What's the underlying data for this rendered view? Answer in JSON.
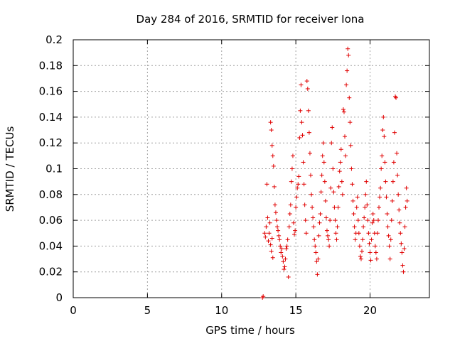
{
  "chart_data": {
    "type": "scatter",
    "title": "Day 284 of 2016, SRMTID for receiver Iona",
    "xlabel": "GPS time / hours",
    "ylabel": "SRMTID / TECUs",
    "xlim": [
      0,
      24
    ],
    "ylim": [
      0,
      0.2
    ],
    "xticks": [
      0,
      5,
      10,
      15,
      20
    ],
    "yticks": [
      0,
      0.02,
      0.04,
      0.06,
      0.08,
      0.1,
      0.12,
      0.14,
      0.16,
      0.18,
      0.2
    ],
    "xtick_labels": [
      "0",
      "5",
      "10",
      "15",
      "20"
    ],
    "ytick_labels": [
      "0",
      "0.02",
      "0.04",
      "0.06",
      "0.08",
      "0.1",
      "0.12",
      "0.14",
      "0.16",
      "0.18",
      "0.2"
    ],
    "grid": true,
    "marker": "+",
    "color": "#e00000",
    "series": [
      {
        "name": "SRMTID",
        "points": [
          [
            12.75,
            0.0
          ],
          [
            12.8,
            0.001
          ],
          [
            12.9,
            0.05
          ],
          [
            12.95,
            0.047
          ],
          [
            13.0,
            0.055
          ],
          [
            13.05,
            0.088
          ],
          [
            13.1,
            0.062
          ],
          [
            13.15,
            0.044
          ],
          [
            13.2,
            0.05
          ],
          [
            13.25,
            0.058
          ],
          [
            13.3,
            0.041
          ],
          [
            13.35,
            0.036
          ],
          [
            13.4,
            0.046
          ],
          [
            13.45,
            0.031
          ],
          [
            13.3,
            0.136
          ],
          [
            13.35,
            0.13
          ],
          [
            13.4,
            0.118
          ],
          [
            13.45,
            0.11
          ],
          [
            13.5,
            0.102
          ],
          [
            13.55,
            0.086
          ],
          [
            13.6,
            0.072
          ],
          [
            13.65,
            0.066
          ],
          [
            13.7,
            0.06
          ],
          [
            13.75,
            0.055
          ],
          [
            13.8,
            0.052
          ],
          [
            13.85,
            0.048
          ],
          [
            13.9,
            0.045
          ],
          [
            13.95,
            0.04
          ],
          [
            14.0,
            0.035
          ],
          [
            14.05,
            0.038
          ],
          [
            14.1,
            0.032
          ],
          [
            14.15,
            0.028
          ],
          [
            14.2,
            0.022
          ],
          [
            14.25,
            0.024
          ],
          [
            14.3,
            0.03
          ],
          [
            14.35,
            0.038
          ],
          [
            14.4,
            0.04
          ],
          [
            14.45,
            0.045
          ],
          [
            14.5,
            0.016
          ],
          [
            14.55,
            0.055
          ],
          [
            14.6,
            0.065
          ],
          [
            14.65,
            0.072
          ],
          [
            14.7,
            0.09
          ],
          [
            14.75,
            0.1
          ],
          [
            14.8,
            0.11
          ],
          [
            14.85,
            0.058
          ],
          [
            14.9,
            0.049
          ],
          [
            14.95,
            0.052
          ],
          [
            15.0,
            0.07
          ],
          [
            15.05,
            0.078
          ],
          [
            15.1,
            0.085
          ],
          [
            15.15,
            0.088
          ],
          [
            15.2,
            0.094
          ],
          [
            15.25,
            0.124
          ],
          [
            15.3,
            0.145
          ],
          [
            15.35,
            0.165
          ],
          [
            15.4,
            0.136
          ],
          [
            15.45,
            0.126
          ],
          [
            15.5,
            0.105
          ],
          [
            15.55,
            0.088
          ],
          [
            15.6,
            0.072
          ],
          [
            15.65,
            0.06
          ],
          [
            15.7,
            0.05
          ],
          [
            15.75,
            0.168
          ],
          [
            15.8,
            0.162
          ],
          [
            15.85,
            0.145
          ],
          [
            15.9,
            0.128
          ],
          [
            15.95,
            0.112
          ],
          [
            16.0,
            0.095
          ],
          [
            16.05,
            0.08
          ],
          [
            16.1,
            0.07
          ],
          [
            16.15,
            0.062
          ],
          [
            16.2,
            0.055
          ],
          [
            16.25,
            0.045
          ],
          [
            16.3,
            0.04
          ],
          [
            16.35,
            0.035
          ],
          [
            16.4,
            0.028
          ],
          [
            16.45,
            0.018
          ],
          [
            16.5,
            0.03
          ],
          [
            16.55,
            0.048
          ],
          [
            16.6,
            0.058
          ],
          [
            16.65,
            0.065
          ],
          [
            16.7,
            0.082
          ],
          [
            16.75,
            0.095
          ],
          [
            16.8,
            0.11
          ],
          [
            16.85,
            0.12
          ],
          [
            16.9,
            0.105
          ],
          [
            16.95,
            0.09
          ],
          [
            17.0,
            0.075
          ],
          [
            17.05,
            0.062
          ],
          [
            17.1,
            0.052
          ],
          [
            17.15,
            0.048
          ],
          [
            17.2,
            0.045
          ],
          [
            17.25,
            0.04
          ],
          [
            17.3,
            0.06
          ],
          [
            17.35,
            0.085
          ],
          [
            17.4,
            0.12
          ],
          [
            17.45,
            0.132
          ],
          [
            17.5,
            0.1
          ],
          [
            17.55,
            0.082
          ],
          [
            17.6,
            0.07
          ],
          [
            17.65,
            0.06
          ],
          [
            17.7,
            0.05
          ],
          [
            17.75,
            0.045
          ],
          [
            17.8,
            0.055
          ],
          [
            17.85,
            0.07
          ],
          [
            17.9,
            0.086
          ],
          [
            17.95,
            0.098
          ],
          [
            18.0,
            0.105
          ],
          [
            18.05,
            0.115
          ],
          [
            18.1,
            0.09
          ],
          [
            18.15,
            0.08
          ],
          [
            18.2,
            0.146
          ],
          [
            18.25,
            0.144
          ],
          [
            18.3,
            0.125
          ],
          [
            18.35,
            0.11
          ],
          [
            18.4,
            0.165
          ],
          [
            18.45,
            0.176
          ],
          [
            18.5,
            0.193
          ],
          [
            18.55,
            0.188
          ],
          [
            18.6,
            0.155
          ],
          [
            18.65,
            0.136
          ],
          [
            18.7,
            0.118
          ],
          [
            18.75,
            0.1
          ],
          [
            18.8,
            0.088
          ],
          [
            18.85,
            0.075
          ],
          [
            18.9,
            0.065
          ],
          [
            18.95,
            0.055
          ],
          [
            19.0,
            0.045
          ],
          [
            19.05,
            0.05
          ],
          [
            19.1,
            0.07
          ],
          [
            19.15,
            0.078
          ],
          [
            19.2,
            0.06
          ],
          [
            19.25,
            0.05
          ],
          [
            19.3,
            0.04
          ],
          [
            19.35,
            0.032
          ],
          [
            19.4,
            0.03
          ],
          [
            19.45,
            0.036
          ],
          [
            19.5,
            0.045
          ],
          [
            19.55,
            0.055
          ],
          [
            19.6,
            0.062
          ],
          [
            19.65,
            0.07
          ],
          [
            19.7,
            0.08
          ],
          [
            19.75,
            0.09
          ],
          [
            19.8,
            0.072
          ],
          [
            19.85,
            0.06
          ],
          [
            19.9,
            0.05
          ],
          [
            19.95,
            0.042
          ],
          [
            20.0,
            0.035
          ],
          [
            20.05,
            0.029
          ],
          [
            20.1,
            0.045
          ],
          [
            20.15,
            0.058
          ],
          [
            20.2,
            0.065
          ],
          [
            20.25,
            0.06
          ],
          [
            20.3,
            0.05
          ],
          [
            20.35,
            0.04
          ],
          [
            20.4,
            0.035
          ],
          [
            20.45,
            0.03
          ],
          [
            20.5,
            0.05
          ],
          [
            20.55,
            0.06
          ],
          [
            20.6,
            0.07
          ],
          [
            20.65,
            0.078
          ],
          [
            20.7,
            0.085
          ],
          [
            20.75,
            0.1
          ],
          [
            20.8,
            0.11
          ],
          [
            20.85,
            0.13
          ],
          [
            20.9,
            0.14
          ],
          [
            20.95,
            0.125
          ],
          [
            21.0,
            0.105
          ],
          [
            21.05,
            0.09
          ],
          [
            21.1,
            0.078
          ],
          [
            21.15,
            0.065
          ],
          [
            21.2,
            0.055
          ],
          [
            21.25,
            0.048
          ],
          [
            21.3,
            0.04
          ],
          [
            21.35,
            0.03
          ],
          [
            21.4,
            0.045
          ],
          [
            21.45,
            0.06
          ],
          [
            21.5,
            0.075
          ],
          [
            21.55,
            0.09
          ],
          [
            21.6,
            0.105
          ],
          [
            21.65,
            0.128
          ],
          [
            21.7,
            0.156
          ],
          [
            21.75,
            0.155
          ],
          [
            21.8,
            0.112
          ],
          [
            21.85,
            0.095
          ],
          [
            21.9,
            0.08
          ],
          [
            21.95,
            0.068
          ],
          [
            22.0,
            0.058
          ],
          [
            22.05,
            0.05
          ],
          [
            22.1,
            0.042
          ],
          [
            22.15,
            0.035
          ],
          [
            22.2,
            0.025
          ],
          [
            22.25,
            0.02
          ],
          [
            22.3,
            0.038
          ],
          [
            22.35,
            0.055
          ],
          [
            22.4,
            0.07
          ],
          [
            22.45,
            0.085
          ],
          [
            22.5,
            0.075
          ]
        ]
      }
    ]
  }
}
